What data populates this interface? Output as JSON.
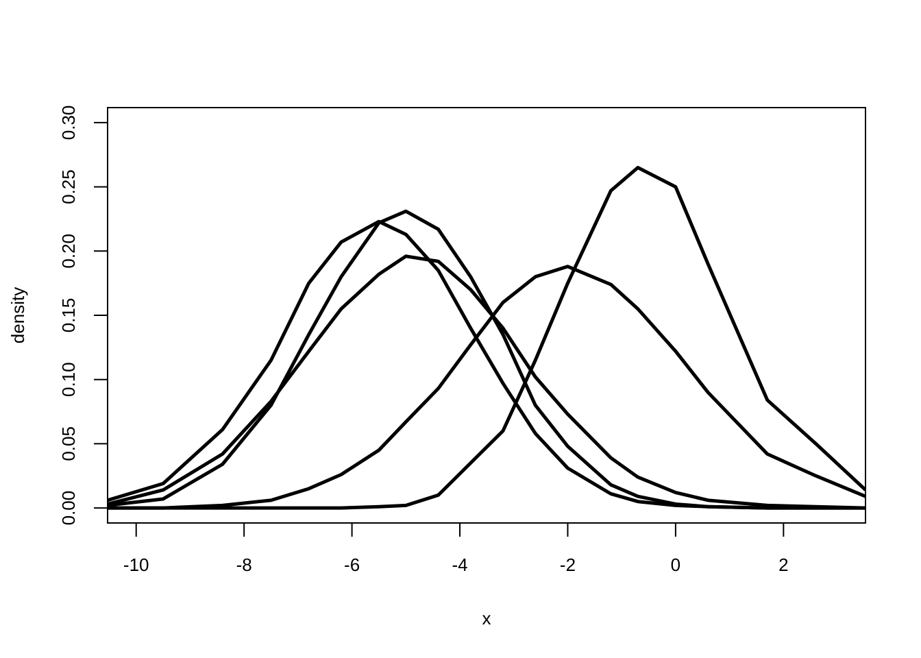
{
  "chart_data": {
    "type": "line",
    "x_label": "x",
    "y_label": "density",
    "x": [
      -10.53,
      -9.5,
      -8.4,
      -7.5,
      -6.8,
      -6.2,
      -5.5,
      -5.0,
      -4.4,
      -3.8,
      -3.2,
      -2.6,
      -2.0,
      -1.2,
      -0.7,
      0,
      0.6,
      1.7,
      2.6,
      3.52
    ],
    "series": [
      {
        "color": "#000000",
        "values": [
          0.006,
          0.019,
          0.061,
          0.115,
          0.175,
          0.207,
          0.223,
          0.213,
          0.185,
          0.14,
          0.097,
          0.058,
          0.031,
          0.011,
          0.005,
          0.002,
          0.001,
          0,
          0,
          0
        ]
      },
      {
        "color": "#000000",
        "values": [
          0.002,
          0.007,
          0.034,
          0.08,
          0.135,
          0.18,
          0.222,
          0.231,
          0.217,
          0.18,
          0.135,
          0.08,
          0.048,
          0.018,
          0.009,
          0.003,
          0.001,
          0,
          0,
          0
        ]
      },
      {
        "color": "#000000",
        "values": [
          0.003,
          0.014,
          0.042,
          0.083,
          0.122,
          0.155,
          0.182,
          0.196,
          0.192,
          0.17,
          0.14,
          0.102,
          0.073,
          0.039,
          0.024,
          0.012,
          0.006,
          0.002,
          0.001,
          0
        ]
      },
      {
        "color": "#000000",
        "values": [
          0,
          0,
          0.002,
          0.006,
          0.015,
          0.026,
          0.045,
          0.067,
          0.093,
          0.127,
          0.16,
          0.18,
          0.188,
          0.174,
          0.155,
          0.122,
          0.09,
          0.042,
          0.025,
          0.009
        ]
      },
      {
        "color": "#000000",
        "values": [
          0,
          0,
          0,
          0,
          0,
          0,
          0.001,
          0.002,
          0.01,
          0.035,
          0.06,
          0.115,
          0.175,
          0.247,
          0.265,
          0.25,
          0.19,
          0.084,
          0.05,
          0.014
        ]
      }
    ],
    "xlim": [
      -10.53,
      3.52
    ],
    "ylim": [
      -0.0117,
      0.3117
    ],
    "xticks": [
      -10,
      -8,
      -6,
      -4,
      -2,
      0,
      2
    ],
    "yticks": [
      {
        "value": 0,
        "label": "0.00"
      },
      {
        "value": 0.05,
        "label": "0.05"
      },
      {
        "value": 0.1,
        "label": "0.10"
      },
      {
        "value": 0.15,
        "label": "0.15"
      },
      {
        "value": 0.2,
        "label": "0.20"
      },
      {
        "value": 0.25,
        "label": "0.25"
      },
      {
        "value": 0.3,
        "label": "0.30"
      }
    ],
    "grid": false
  }
}
